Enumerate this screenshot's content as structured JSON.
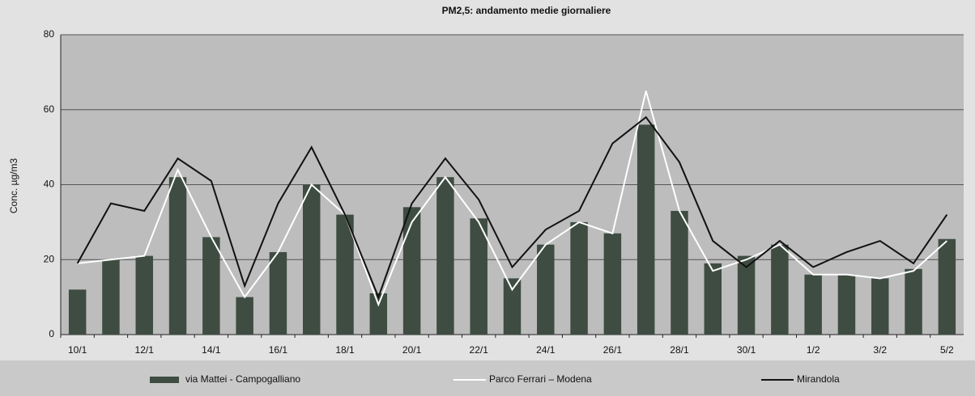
{
  "chart_data": {
    "type": "bar-line",
    "title": "PM2,5:  andamento  medie giornaliere",
    "y_label": "Conc. µg/m3",
    "categories": [
      "10/1",
      null,
      "12/1",
      null,
      "14/1",
      null,
      "16/1",
      null,
      "18/1",
      null,
      "20/1",
      null,
      "22/1",
      null,
      "24/1",
      null,
      "26/1",
      null,
      "28/1",
      null,
      "30/1",
      null,
      "1/2",
      null,
      "3/2",
      null,
      "5/2"
    ],
    "series": [
      {
        "name": "via Mattei - Campogalliano",
        "type": "bar",
        "color": "#3e4c42",
        "values": [
          12,
          20,
          21,
          42,
          26,
          10,
          22,
          40,
          32,
          11,
          34,
          42,
          31,
          15,
          24,
          30,
          27,
          56,
          33,
          19,
          21,
          24,
          16,
          16,
          15,
          17.5,
          25.5
        ]
      },
      {
        "name": "Parco Ferrari – Modena",
        "type": "line",
        "color": "#ffffff",
        "values": [
          19,
          20,
          21,
          44,
          26,
          10,
          22,
          40,
          32,
          8,
          30,
          42,
          30,
          12,
          24,
          30,
          27,
          65,
          33,
          17,
          20,
          24,
          16,
          16,
          15,
          17,
          25
        ]
      },
      {
        "name": "Mirandola",
        "type": "line",
        "color": "#111111",
        "values": [
          19,
          35,
          33,
          47,
          41,
          13,
          35,
          50,
          32,
          10,
          35,
          47,
          36,
          18,
          28,
          33,
          51,
          58,
          46,
          25,
          18,
          25,
          18,
          22,
          25,
          19,
          32
        ]
      }
    ],
    "ylim": [
      0,
      80
    ],
    "yticks": [
      0,
      20,
      40,
      60,
      80
    ],
    "grid": true,
    "legend": "bottom"
  }
}
